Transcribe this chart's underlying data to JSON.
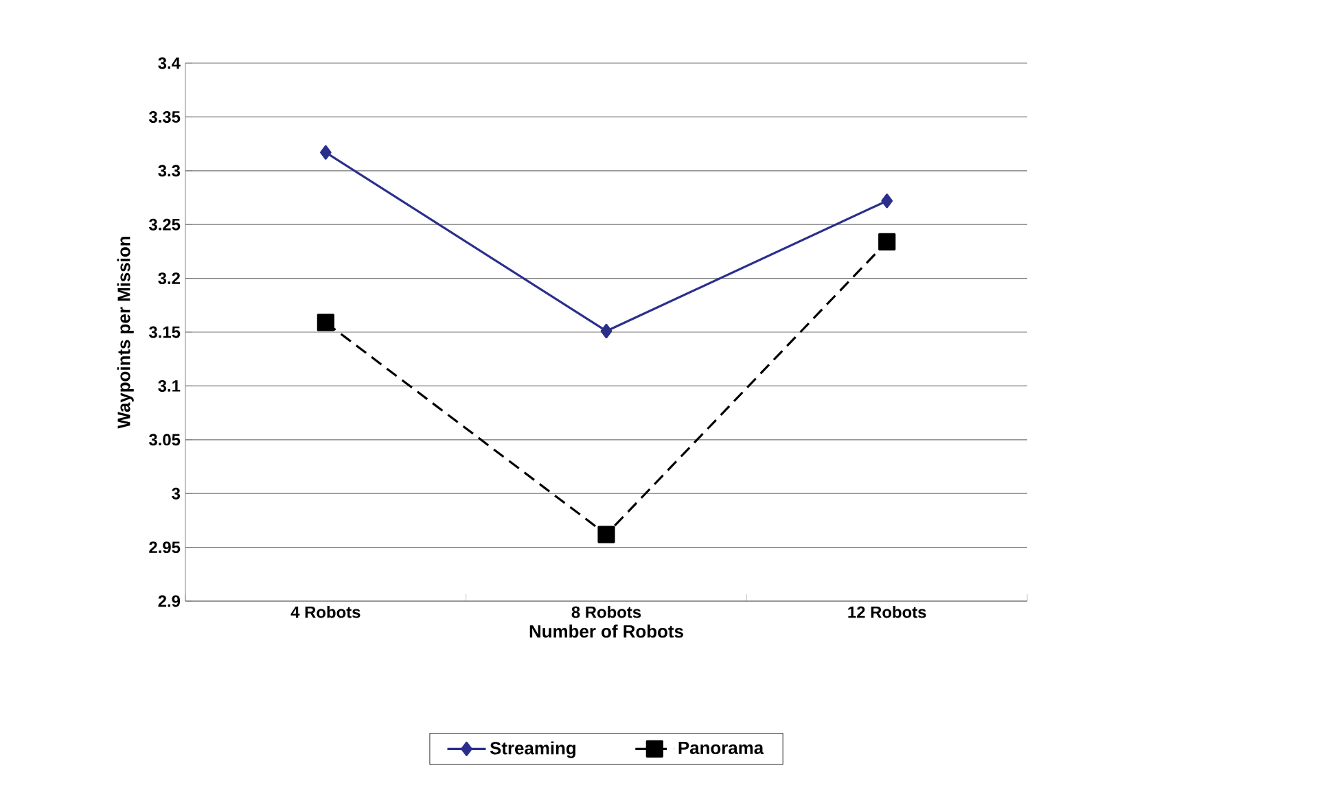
{
  "chart_data": {
    "type": "line",
    "xlabel": "Number of Robots",
    "ylabel": "Waypoints per Mission",
    "categories": [
      "4 Robots",
      "8 Robots",
      "12 Robots"
    ],
    "series": [
      {
        "name": "Streaming",
        "color": "#2b2f8c",
        "values": [
          3.317,
          3.151,
          3.272
        ],
        "marker": "diamond",
        "line_style": "solid"
      },
      {
        "name": "Panorama",
        "color": "#000000",
        "values": [
          3.159,
          2.962,
          3.234
        ],
        "marker": "square",
        "line_style": "dashed"
      }
    ],
    "ylim": [
      2.9,
      3.4
    ],
    "yticks": [
      2.9,
      2.95,
      3,
      3.05,
      3.1,
      3.15,
      3.2,
      3.25,
      3.3,
      3.35,
      3.4
    ],
    "grid": "y",
    "legend": "bottom"
  }
}
